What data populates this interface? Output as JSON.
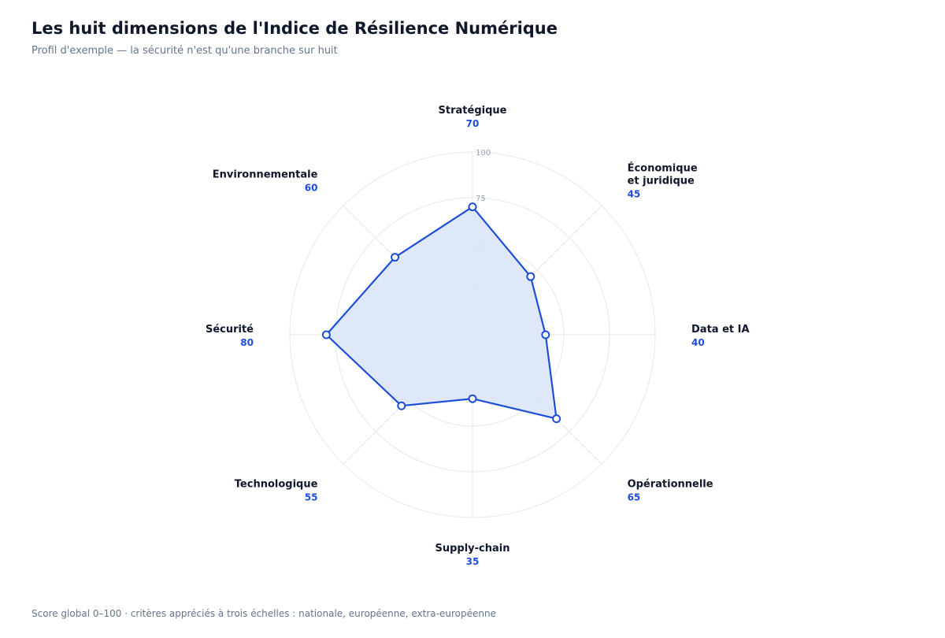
{
  "header": {
    "title": "Les huit dimensions de l'Indice de Résilience Numérique",
    "subtitle": "Profil d'exemple — la sécurité n'est qu'une branche sur huit"
  },
  "footer": {
    "note": "Score global 0–100 · critères appréciés à trois échelles : nationale, européenne, extra-européenne"
  },
  "colors": {
    "series": "#1d4ed8",
    "fill": "#dde7f9",
    "grid": "#e5e7eb",
    "tick": "#94a3b8",
    "axis_label": "#0f172a"
  },
  "chart_data": {
    "type": "radar",
    "title": "Les huit dimensions de l'Indice de Résilience Numérique",
    "scale": [
      0,
      100
    ],
    "rings": [
      25,
      50,
      75,
      100
    ],
    "ring_labels": [
      "25",
      "50",
      "75",
      "100"
    ],
    "axes": [
      {
        "lines": [
          "Stratégique"
        ],
        "value": 70,
        "value_label": "70"
      },
      {
        "lines": [
          "Économique",
          "et juridique"
        ],
        "value": 45,
        "value_label": "45"
      },
      {
        "lines": [
          "Data et IA"
        ],
        "value": 40,
        "value_label": "40"
      },
      {
        "lines": [
          "Opérationnelle"
        ],
        "value": 65,
        "value_label": "65"
      },
      {
        "lines": [
          "Supply-chain"
        ],
        "value": 35,
        "value_label": "35"
      },
      {
        "lines": [
          "Technologique"
        ],
        "value": 55,
        "value_label": "55"
      },
      {
        "lines": [
          "Sécurité"
        ],
        "value": 80,
        "value_label": "80"
      },
      {
        "lines": [
          "Environnementale"
        ],
        "value": 60,
        "value_label": "60"
      }
    ]
  }
}
